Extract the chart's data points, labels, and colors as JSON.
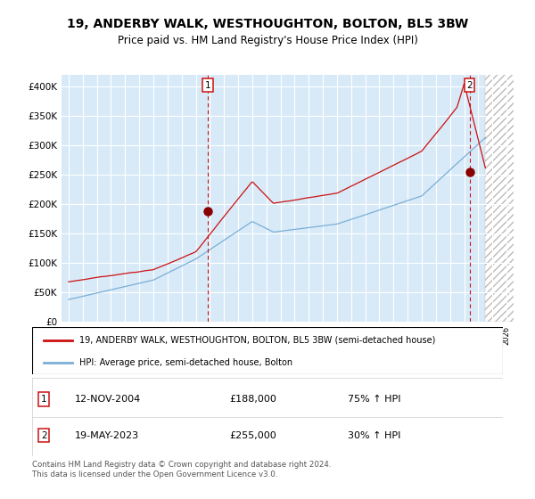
{
  "title": "19, ANDERBY WALK, WESTHOUGHTON, BOLTON, BL5 3BW",
  "subtitle": "Price paid vs. HM Land Registry's House Price Index (HPI)",
  "legend_line1": "19, ANDERBY WALK, WESTHOUGHTON, BOLTON, BL5 3BW (semi-detached house)",
  "legend_line2": "HPI: Average price, semi-detached house, Bolton",
  "footnote": "Contains HM Land Registry data © Crown copyright and database right 2024.\nThis data is licensed under the Open Government Licence v3.0.",
  "ann1_label": "1",
  "ann1_date": "12-NOV-2004",
  "ann1_price": "£188,000",
  "ann1_hpi": "75% ↑ HPI",
  "ann2_label": "2",
  "ann2_date": "19-MAY-2023",
  "ann2_price": "£255,000",
  "ann2_hpi": "30% ↑ HPI",
  "hpi_color": "#7aaed6",
  "price_color": "#cc1111",
  "dot_color": "#880000",
  "bg_color": "#d8eaf8",
  "grid_color": "#ffffff",
  "ylim": [
    0,
    420000
  ],
  "yticks": [
    0,
    50000,
    100000,
    150000,
    200000,
    250000,
    300000,
    350000,
    400000
  ],
  "xlim_start": 1994.5,
  "xlim_end": 2026.5,
  "purchase1_x": 2004.87,
  "purchase1_y": 188000,
  "purchase2_x": 2023.38,
  "purchase2_y": 255000,
  "future_start": 2024.5
}
